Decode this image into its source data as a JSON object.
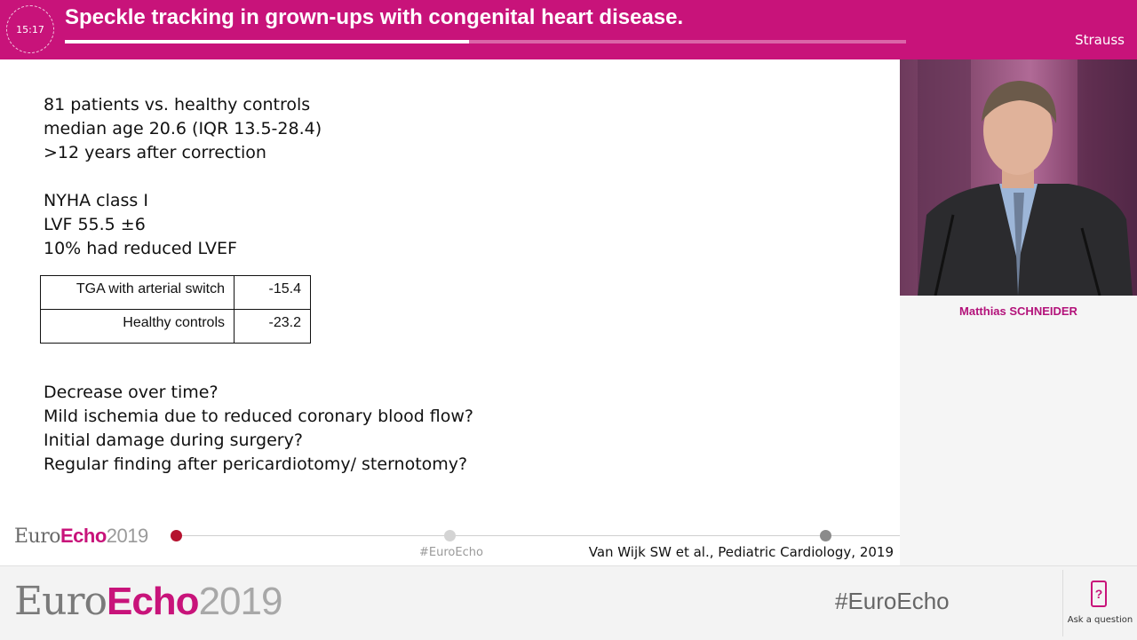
{
  "header": {
    "time": "15:17",
    "title": "Speckle tracking in grown-ups with congenital heart disease.",
    "progress_fraction": 0.48,
    "presenter_tag": "Strauss"
  },
  "slide": {
    "block1": [
      "81 patients vs. healthy controls",
      "median age 20.6 (IQR 13.5-28.4)",
      ">12 years after correction"
    ],
    "block2": [
      "NYHA class I",
      "LVF 55.5 ±6",
      "10% had reduced LVEF"
    ],
    "table": [
      {
        "label": "TGA with arterial switch",
        "value": "-15.4"
      },
      {
        "label": "Healthy controls",
        "value": "-23.2"
      }
    ],
    "block3": [
      "Decrease over time?",
      "Mild ischemia due to reduced coronary blood flow?",
      "Initial damage during surgery?",
      "Regular finding after pericardiotomy/ sternotomy?"
    ],
    "footer": {
      "logo_euro": "Euro",
      "logo_echo": "Echo",
      "logo_year": "2019",
      "hashtag": "#EuroEcho",
      "citation": "Van Wijk SW et al., Pediatric Cardiology, 2019"
    }
  },
  "speaker": {
    "name": "Matthias SCHNEIDER"
  },
  "bottom_bar": {
    "logo_euro": "Euro",
    "logo_echo": "Echo",
    "logo_year": "2019",
    "hashtag": "#EuroEcho",
    "ask_label": "Ask a question",
    "ask_icon": "phone-question-icon"
  },
  "colors": {
    "brand": "#c8137a",
    "marker_red": "#b5122f"
  }
}
